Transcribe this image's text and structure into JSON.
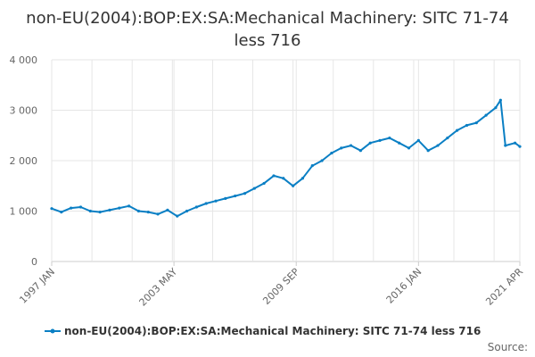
{
  "chart_data": {
    "type": "line",
    "title": "non-EU(2004):BOP:EX:SA:Mechanical Machinery: SITC 71-74 less 716",
    "xlabel": "",
    "ylabel": "",
    "ylim": [
      0,
      4000
    ],
    "y_ticks": [
      0,
      1000,
      2000,
      3000,
      4000
    ],
    "y_tick_labels": [
      "0",
      "1 000",
      "2 000",
      "3 000",
      "4 000"
    ],
    "x_tick_labels": [
      "1997 JAN",
      "2003 MAY",
      "2009 SEP",
      "2016 JAN",
      "2021 APR"
    ],
    "x_tick_dates": [
      "1997-01",
      "2003-05",
      "2009-09",
      "2016-01",
      "2021-04"
    ],
    "x_range": [
      "1997-01",
      "2021-04"
    ],
    "grid": true,
    "legend_position": "bottom",
    "color": "#0a7fc4",
    "series": [
      {
        "name": "non-EU(2004):BOP:EX:SA:Mechanical Machinery: SITC 71-74 less 716",
        "x": [
          "1997-01",
          "1997-07",
          "1998-01",
          "1998-07",
          "1999-01",
          "1999-07",
          "2000-01",
          "2000-07",
          "2001-01",
          "2001-07",
          "2002-01",
          "2002-07",
          "2003-01",
          "2003-07",
          "2004-01",
          "2004-07",
          "2005-01",
          "2005-07",
          "2006-01",
          "2006-07",
          "2007-01",
          "2007-07",
          "2008-01",
          "2008-07",
          "2009-01",
          "2009-07",
          "2010-01",
          "2010-07",
          "2011-01",
          "2011-07",
          "2012-01",
          "2012-07",
          "2013-01",
          "2013-07",
          "2014-01",
          "2014-07",
          "2015-01",
          "2015-07",
          "2016-01",
          "2016-07",
          "2017-01",
          "2017-07",
          "2018-01",
          "2018-07",
          "2019-01",
          "2019-07",
          "2020-01",
          "2020-04",
          "2020-07",
          "2021-01",
          "2021-04"
        ],
        "values": [
          1050,
          980,
          1060,
          1080,
          1000,
          980,
          1020,
          1060,
          1100,
          1000,
          980,
          940,
          1020,
          900,
          1000,
          1080,
          1150,
          1200,
          1250,
          1300,
          1350,
          1450,
          1550,
          1700,
          1650,
          1500,
          1650,
          1900,
          2000,
          2150,
          2250,
          2300,
          2200,
          2350,
          2400,
          2450,
          2350,
          2250,
          2400,
          2200,
          2300,
          2450,
          2600,
          2700,
          2750,
          2900,
          3050,
          3200,
          2300,
          2350,
          2280
        ]
      }
    ]
  },
  "legend": {
    "label": "non-EU(2004):BOP:EX:SA:Mechanical Machinery: SITC 71-74 less 716"
  },
  "footer": {
    "source_label": "Source:"
  }
}
